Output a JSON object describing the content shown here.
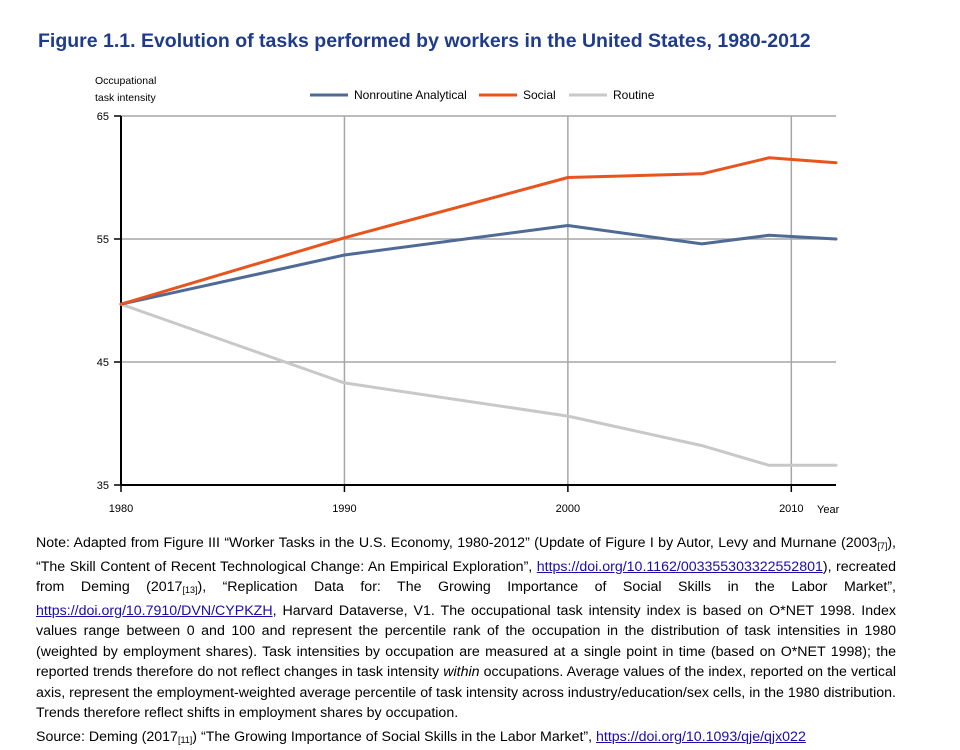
{
  "figure": {
    "title": "Figure 1.1. Evolution of tasks performed by workers in the United States, 1980-2012"
  },
  "chart_data": {
    "type": "line",
    "title": "Figure 1.1. Evolution of tasks performed by workers in the United States, 1980-2012",
    "ylabel_line1": "Occupational",
    "ylabel_line2": "task intensity",
    "xlabel": "Year",
    "xlim": [
      1980,
      2012
    ],
    "ylim": [
      35,
      65
    ],
    "xticks": [
      1980,
      1990,
      2000,
      2010
    ],
    "yticks": [
      35,
      45,
      55,
      65
    ],
    "grid": true,
    "legend_position": "top-center",
    "series": [
      {
        "name": "Nonroutine Analytical",
        "color": "#4f6b95",
        "points": [
          [
            1980,
            49.7
          ],
          [
            1990,
            53.7
          ],
          [
            2000,
            56.1
          ],
          [
            2006,
            54.6
          ],
          [
            2009,
            55.3
          ],
          [
            2012,
            55.0
          ]
        ]
      },
      {
        "name": "Social",
        "color": "#e8541e",
        "points": [
          [
            1980,
            49.7
          ],
          [
            1990,
            55.1
          ],
          [
            2000,
            60.0
          ],
          [
            2006,
            60.3
          ],
          [
            2009,
            61.6
          ],
          [
            2012,
            61.2
          ]
        ]
      },
      {
        "name": "Routine",
        "color": "#c8c8c8",
        "points": [
          [
            1980,
            49.7
          ],
          [
            1990,
            43.3
          ],
          [
            2000,
            40.6
          ],
          [
            2006,
            38.2
          ],
          [
            2009,
            36.6
          ],
          [
            2012,
            36.6
          ]
        ]
      }
    ]
  },
  "note": {
    "p1": "Note: Adapted from Figure III “Worker Tasks in the U.S. Economy, 1980-2012” (Update of Figure I by Autor, Levy and Murnane (2003",
    "ref1": "[7]",
    "p2": "), “The Skill Content of Recent Technological Change: An Empirical Exploration”, ",
    "link1": "https://doi.org/10.1162/003355303322552801",
    "p3": "), recreated from Deming (2017",
    "ref2": "[13]",
    "p4": "), “Replication Data for: The Growing Importance of Social Skills in the Labor Market”, ",
    "link2": "https://doi.org/10.7910/DVN/CYPKZH",
    "p5": ", Harvard Dataverse, V1. The occupational task intensity index is based on O*NET 1998. Index values range between 0 and 100 and represent the percentile rank of the occupation in the distribution of task intensities in 1980 (weighted by employment shares). Task intensities by occupation are measured at a single point in time (based on O*NET 1998); the reported trends therefore do not reflect changes in task intensity ",
    "emph": "within",
    "p6": " occupations. Average values of the index, reported on the vertical axis, represent the employment-weighted average percentile of task intensity across industry/education/sex cells, in the 1980 distribution. Trends therefore reflect shifts in employment shares by occupation."
  },
  "source": {
    "p1": "Source: Deming (2017",
    "ref": "[11]",
    "p2": ") “The Growing Importance of Social Skills in the Labor Market”, ",
    "link": "https://doi.org/10.1093/qje/qjx022"
  }
}
